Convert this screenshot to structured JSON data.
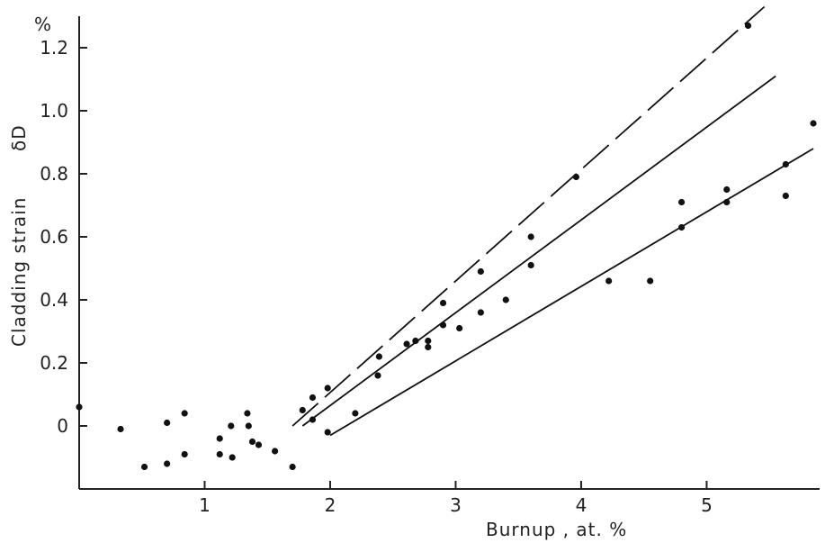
{
  "chart_data": {
    "type": "scatter",
    "title": "",
    "xlabel": "Burnup , at. %",
    "ylabel": "Cladding strain",
    "ylabel_symbol": "δD",
    "y_unit": "%",
    "xlim": [
      0,
      5.9
    ],
    "ylim": [
      -0.2,
      1.3
    ],
    "grid": false,
    "x_ticks": [
      1,
      2,
      3,
      4,
      5
    ],
    "x_tick_labels": [
      "1",
      "2",
      "3",
      "4",
      "5"
    ],
    "y_ticks": [
      0,
      0.2,
      0.4,
      0.6,
      0.8,
      1.0,
      1.2
    ],
    "y_tick_labels": [
      "0",
      "0.2",
      "0.4",
      "0.6",
      "0.8",
      "1.0",
      "1.2"
    ],
    "points": [
      [
        0.0,
        0.06
      ],
      [
        0.33,
        -0.01
      ],
      [
        0.52,
        -0.13
      ],
      [
        0.7,
        0.01
      ],
      [
        0.7,
        -0.12
      ],
      [
        0.84,
        0.04
      ],
      [
        0.84,
        -0.09
      ],
      [
        1.12,
        -0.04
      ],
      [
        1.12,
        -0.09
      ],
      [
        1.21,
        0.0
      ],
      [
        1.22,
        -0.1
      ],
      [
        1.34,
        0.04
      ],
      [
        1.35,
        0.0
      ],
      [
        1.38,
        -0.05
      ],
      [
        1.43,
        -0.06
      ],
      [
        1.56,
        -0.08
      ],
      [
        1.7,
        -0.13
      ],
      [
        1.78,
        0.05
      ],
      [
        1.86,
        0.02
      ],
      [
        1.86,
        0.09
      ],
      [
        1.98,
        -0.02
      ],
      [
        1.98,
        0.12
      ],
      [
        2.2,
        0.04
      ],
      [
        2.38,
        0.16
      ],
      [
        2.39,
        0.22
      ],
      [
        2.61,
        0.26
      ],
      [
        2.68,
        0.27
      ],
      [
        2.78,
        0.25
      ],
      [
        2.78,
        0.27
      ],
      [
        2.9,
        0.32
      ],
      [
        2.9,
        0.39
      ],
      [
        3.03,
        0.31
      ],
      [
        3.2,
        0.36
      ],
      [
        3.2,
        0.49
      ],
      [
        3.4,
        0.4
      ],
      [
        3.6,
        0.51
      ],
      [
        3.6,
        0.6
      ],
      [
        3.96,
        0.79
      ],
      [
        4.22,
        0.46
      ],
      [
        4.55,
        0.46
      ],
      [
        4.8,
        0.63
      ],
      [
        4.8,
        0.71
      ],
      [
        5.16,
        0.71
      ],
      [
        5.16,
        0.75
      ],
      [
        5.33,
        1.27
      ],
      [
        5.63,
        0.73
      ],
      [
        5.63,
        0.83
      ],
      [
        5.85,
        0.96
      ]
    ],
    "fit_lines": [
      {
        "style": "dashed",
        "x": [
          1.7,
          5.46
        ],
        "y": [
          0.0,
          1.33
        ]
      },
      {
        "style": "solid",
        "x": [
          1.78,
          5.55
        ],
        "y": [
          0.0,
          1.11
        ]
      },
      {
        "style": "solid",
        "x": [
          2.0,
          5.85
        ],
        "y": [
          -0.03,
          0.88
        ]
      }
    ]
  }
}
